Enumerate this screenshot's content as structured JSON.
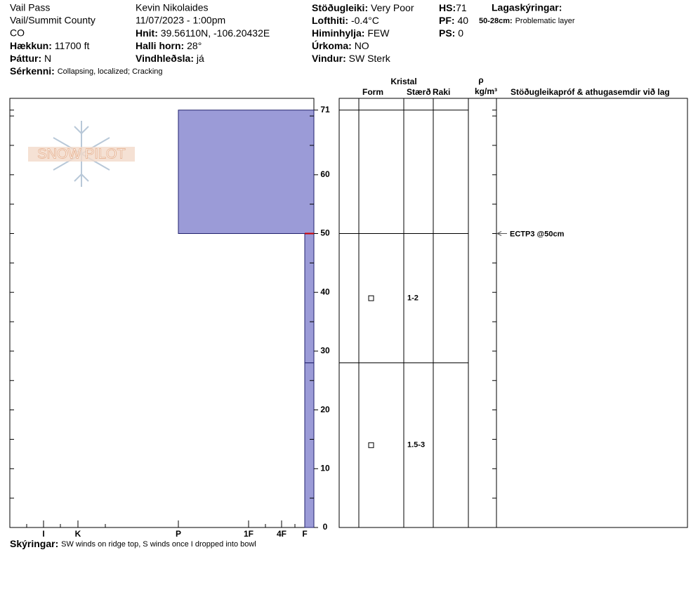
{
  "header": {
    "location": "Vail Pass",
    "region": "Vail/Summit County",
    "state": "CO",
    "elevation_label": "Hækkun:",
    "elevation": "11700 ft",
    "aspect_label": "Þáttur:",
    "aspect": "N",
    "features_label": "Sérkenni:",
    "features": "Collapsing, localized;  Cracking",
    "observer": "Kevin Nikolaides",
    "datetime": "11/07/2023 - 1:00pm",
    "coords_label": "Hnit:",
    "coords": "39.56110N, -106.20432E",
    "slope_label": "Halli horn:",
    "slope": "28°",
    "wind_loading_label": "Vindhleðsla:",
    "wind_loading": "já",
    "stability_label": "Stöðugleiki:",
    "stability": "Very Poor",
    "air_temp_label": "Lofthiti:",
    "air_temp": "-0.4°C",
    "sky_label": "Himinhylja:",
    "sky": "FEW",
    "precip_label": "Úrkoma:",
    "precip": "NO",
    "wind_label": "Vindur:",
    "wind": "SW Sterk",
    "hs_label": "HS:",
    "hs": 71,
    "pf_label": "PF:",
    "pf": 40,
    "ps_label": "PS:",
    "ps": 0,
    "layer_notes_label": "Lagaskýringar:",
    "layer_note_range": "50-28cm:",
    "layer_note": "Problematic layer"
  },
  "logo": "SNOW PILOT",
  "columns": {
    "crystal": "Kristal",
    "form": "Form",
    "size": "Stærð",
    "moisture": "Raki",
    "rho": "ρ",
    "density_unit": "kg/m³",
    "tests": "Stöðugleikapróf & athugasemdir við lag"
  },
  "footer": {
    "notes_label": "Skýringar:",
    "notes": "SW winds on ridge top, S winds once I dropped into bowl"
  },
  "chart_data": {
    "type": "snow-profile",
    "ylim": [
      0,
      73
    ],
    "yticks": [
      0,
      10,
      20,
      30,
      40,
      50,
      60,
      71
    ],
    "minor_yticks": [
      5,
      15,
      25,
      35,
      45,
      55,
      65,
      70
    ],
    "hardness_categories": [
      "I",
      "K",
      "P",
      "1F",
      "4F",
      "F"
    ],
    "color": "#9b9bd7",
    "layers": [
      {
        "top": 71,
        "bottom": 50,
        "hardness": "P"
      },
      {
        "top": 50,
        "bottom": 28,
        "hardness": "F",
        "size": "1-2"
      },
      {
        "top": 28,
        "bottom": 0,
        "hardness": "F",
        "size": "1.5-3"
      }
    ],
    "tests": [
      {
        "label": "ECTP3 @50cm",
        "depth": 50
      }
    ]
  }
}
